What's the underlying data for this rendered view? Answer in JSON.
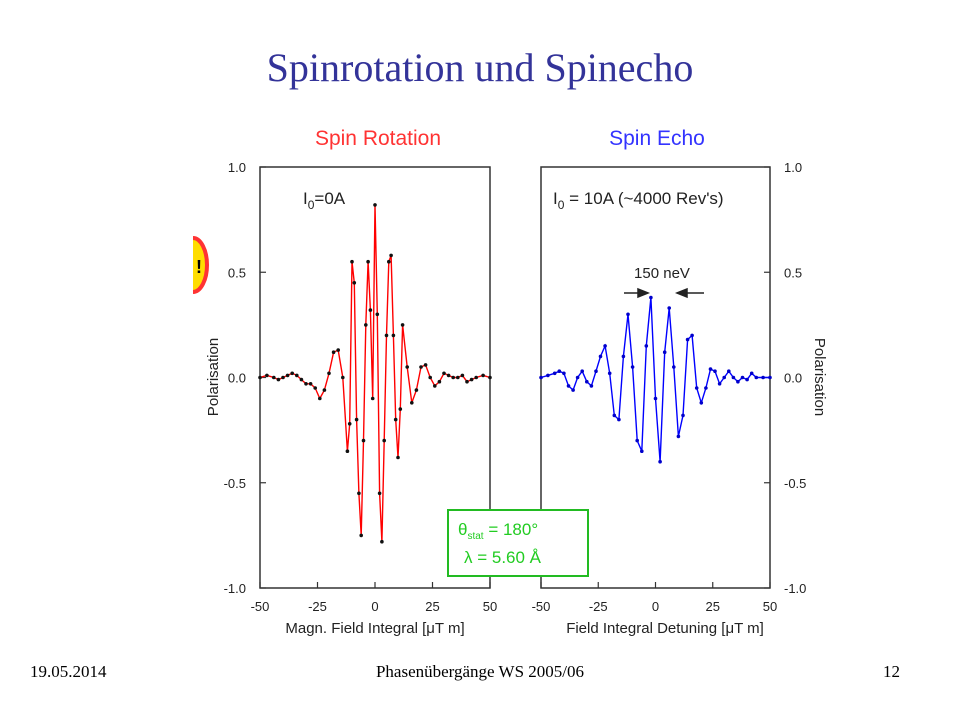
{
  "slide": {
    "title": "Spinrotation und Spinecho",
    "footer_date": "19.05.2014",
    "footer_center": "Phasenübergänge WS 2005/06",
    "footer_page": "12"
  },
  "chart_data": [
    {
      "type": "line",
      "title": "Spin Rotation",
      "title_color": "#ff3333",
      "series_color": "#ff0000",
      "marker_color": "#111111",
      "xlabel": "Magn. Field Integral [μT m]",
      "ylabel": "Polarisation",
      "xlim": [
        -50,
        50
      ],
      "ylim": [
        -1.0,
        1.0
      ],
      "xticks": [
        "-50",
        "-25",
        "0",
        "25",
        "50"
      ],
      "yticks": [
        "-1.0",
        "-0.5",
        "0.0",
        "0.5",
        "1.0"
      ],
      "annotation": {
        "prefix": "I",
        "subscript": "0",
        "suffix": "=0A"
      },
      "series": [
        {
          "x": [
            -50,
            -47,
            -44,
            -42,
            -40,
            -38,
            -36,
            -34,
            -32,
            -30,
            -28,
            -26,
            -24,
            -22,
            -20,
            -18,
            -16,
            -14,
            -12,
            -11,
            -10,
            -9,
            -8,
            -7,
            -6,
            -5,
            -4,
            -3,
            -2,
            -1,
            0,
            1,
            2,
            3,
            4,
            5,
            6,
            7,
            8,
            9,
            10,
            11,
            12,
            14,
            16,
            18,
            20,
            22,
            24,
            26,
            28,
            30,
            32,
            34,
            36,
            38,
            40,
            42,
            44,
            47,
            50
          ],
          "y": [
            0.0,
            0.01,
            0.0,
            -0.01,
            0.0,
            0.01,
            0.02,
            0.01,
            -0.01,
            -0.03,
            -0.03,
            -0.05,
            -0.1,
            -0.06,
            0.02,
            0.12,
            0.13,
            0.0,
            -0.35,
            -0.22,
            0.55,
            0.45,
            -0.2,
            -0.55,
            -0.75,
            -0.3,
            0.25,
            0.55,
            0.32,
            -0.1,
            0.82,
            0.3,
            -0.55,
            -0.78,
            -0.3,
            0.2,
            0.55,
            0.58,
            0.2,
            -0.2,
            -0.38,
            -0.15,
            0.25,
            0.05,
            -0.12,
            -0.06,
            0.05,
            0.06,
            0.0,
            -0.04,
            -0.02,
            0.02,
            0.01,
            0.0,
            0.0,
            0.01,
            -0.02,
            -0.01,
            0.0,
            0.01,
            0.0
          ]
        }
      ]
    },
    {
      "type": "line",
      "title": "Spin Echo",
      "title_color": "#3333ff",
      "series_color": "#0000ff",
      "marker_color": "#0000cc",
      "xlabel": "Field Integral Detuning [μT m]",
      "ylabel": "Polarisation",
      "xlim": [
        -50,
        50
      ],
      "ylim": [
        -1.0,
        1.0
      ],
      "xticks": [
        "-50",
        "-25",
        "0",
        "25",
        "50"
      ],
      "yticks": [
        "-1.0",
        "-0.5",
        "0.0",
        "0.5",
        "1.0"
      ],
      "annotation": {
        "prefix": "I",
        "subscript": "0",
        "suffix": " = 10A (~4000 Rev's)"
      },
      "width_label": "150 neV",
      "series": [
        {
          "x": [
            -50,
            -47,
            -44,
            -42,
            -40,
            -38,
            -36,
            -34,
            -32,
            -30,
            -28,
            -26,
            -24,
            -22,
            -20,
            -18,
            -16,
            -14,
            -12,
            -10,
            -8,
            -6,
            -4,
            -2,
            0,
            2,
            4,
            6,
            8,
            10,
            12,
            14,
            16,
            18,
            20,
            22,
            24,
            26,
            28,
            30,
            32,
            34,
            36,
            38,
            40,
            42,
            44,
            47,
            50
          ],
          "y": [
            0.0,
            0.01,
            0.02,
            0.03,
            0.02,
            -0.04,
            -0.06,
            0.0,
            0.03,
            -0.02,
            -0.04,
            0.03,
            0.1,
            0.15,
            0.02,
            -0.18,
            -0.2,
            0.1,
            0.3,
            0.05,
            -0.3,
            -0.35,
            0.15,
            0.38,
            -0.1,
            -0.4,
            0.12,
            0.33,
            0.05,
            -0.28,
            -0.18,
            0.18,
            0.2,
            -0.05,
            -0.12,
            -0.05,
            0.04,
            0.03,
            -0.03,
            0.0,
            0.03,
            0.0,
            -0.02,
            0.0,
            -0.01,
            0.02,
            0.0,
            0.0,
            0.0
          ]
        }
      ]
    }
  ],
  "legend_box": {
    "line1_theta": "θ",
    "line1_sub": "stat",
    "line1_value": " = 180°",
    "line2": "λ = 5.60 Å",
    "color": "#22cc22",
    "border_color": "#22bb22"
  },
  "warning_icon": {
    "label": "!",
    "color": "#ffdd00",
    "border": "#ff3333"
  }
}
